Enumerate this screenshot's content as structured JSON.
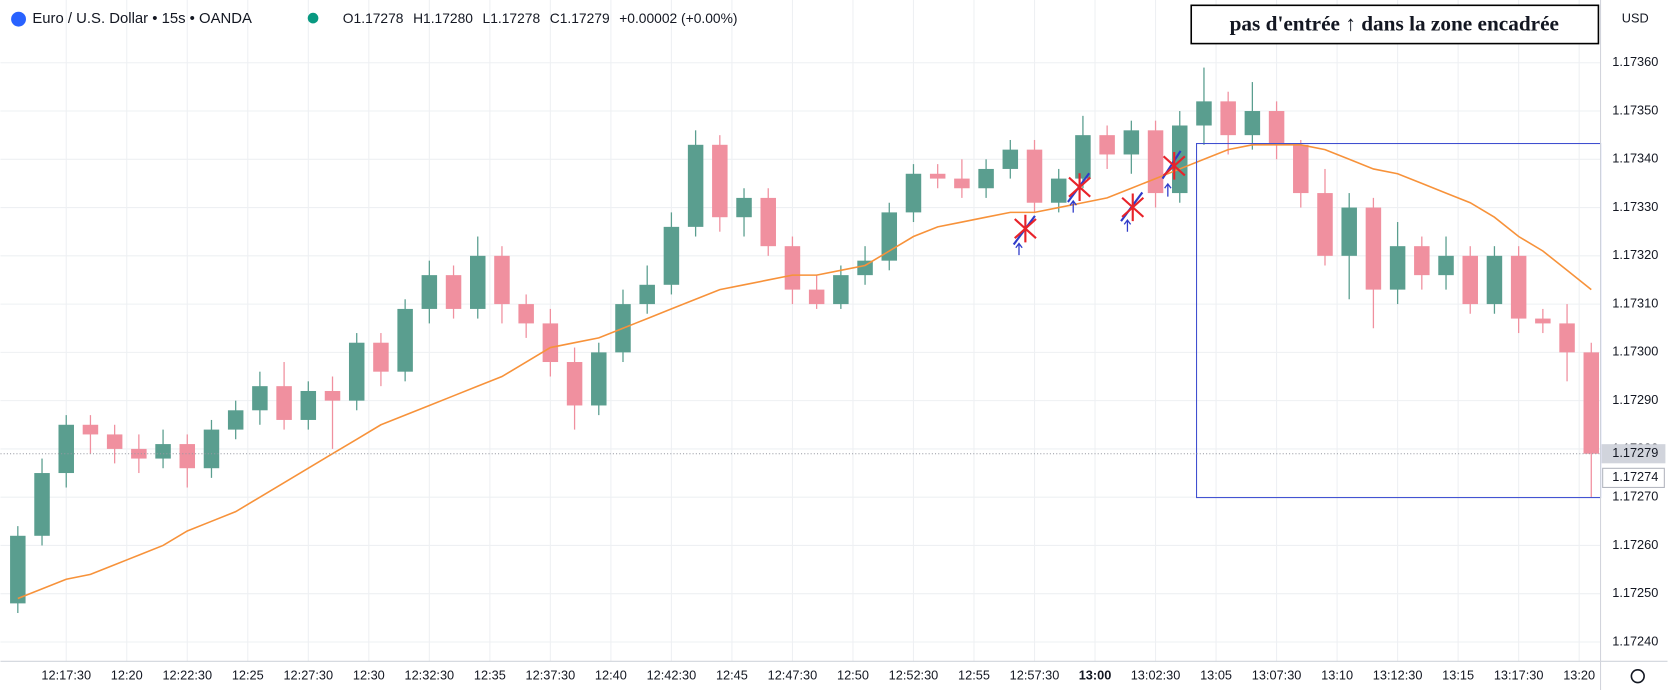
{
  "chart_data": {
    "type": "candlestick",
    "title": "Euro / U.S. Dollar • 15s • OANDA",
    "legend_text": [
      "O1.17278",
      "H1.17280",
      "L1.17278",
      "C1.17279",
      "+0.00002 (+0.00%)"
    ],
    "annotation": "pas d'entrée ↑ dans la zone encadrée",
    "currency": "USD",
    "last_price": {
      "value": 1.17279,
      "label": "1.17279"
    },
    "bid_price": {
      "value": 1.17274,
      "label": "1.17274"
    },
    "x": [
      "12:15",
      "12:16",
      "12:17",
      "12:18",
      "12:19",
      "12:20",
      "12:21",
      "12:22",
      "12:23",
      "12:24",
      "12:25",
      "12:26",
      "12:27",
      "12:28",
      "12:29",
      "12:30",
      "12:31",
      "12:32",
      "12:33",
      "12:34",
      "12:35",
      "12:36",
      "12:37",
      "12:38",
      "12:39",
      "12:40",
      "12:41",
      "12:42",
      "12:43",
      "12:44",
      "12:45",
      "12:46",
      "12:47",
      "12:48",
      "12:49",
      "12:50",
      "12:51",
      "12:52",
      "12:53",
      "12:54",
      "12:55",
      "12:56",
      "12:57",
      "12:58",
      "12:59",
      "13:00",
      "13:01",
      "13:02",
      "13:03",
      "13:04",
      "13:05",
      "13:06",
      "13:07",
      "13:08",
      "13:09",
      "13:10",
      "13:11",
      "13:12",
      "13:13",
      "13:14",
      "13:15",
      "13:16",
      "13:17",
      "13:18",
      "13:19",
      "13:20"
    ],
    "open": [
      1.17248,
      1.17262,
      1.17275,
      1.17285,
      1.17283,
      1.1728,
      1.17278,
      1.17281,
      1.17276,
      1.17284,
      1.17288,
      1.17293,
      1.17286,
      1.17292,
      1.1729,
      1.17302,
      1.17296,
      1.17309,
      1.17316,
      1.17309,
      1.1732,
      1.1731,
      1.17306,
      1.17298,
      1.17289,
      1.173,
      1.1731,
      1.17314,
      1.17326,
      1.17343,
      1.17328,
      1.17332,
      1.17322,
      1.17313,
      1.1731,
      1.17316,
      1.17319,
      1.17329,
      1.17337,
      1.17336,
      1.17334,
      1.17338,
      1.17342,
      1.17331,
      1.17336,
      1.17345,
      1.17341,
      1.17346,
      1.17333,
      1.17347,
      1.17352,
      1.17345,
      1.1735,
      1.17343,
      1.17333,
      1.1732,
      1.1733,
      1.17313,
      1.17322,
      1.17316,
      1.1732,
      1.1731,
      1.1732,
      1.17307,
      1.17306,
      1.173
    ],
    "high": [
      1.17264,
      1.17278,
      1.17287,
      1.17287,
      1.17285,
      1.17283,
      1.17284,
      1.17283,
      1.17286,
      1.1729,
      1.17296,
      1.17298,
      1.17294,
      1.17295,
      1.17304,
      1.17304,
      1.17311,
      1.17319,
      1.17318,
      1.17324,
      1.17322,
      1.17312,
      1.17309,
      1.17301,
      1.17302,
      1.17313,
      1.17318,
      1.17329,
      1.17346,
      1.17345,
      1.17334,
      1.17334,
      1.17324,
      1.17316,
      1.17318,
      1.17322,
      1.17331,
      1.17339,
      1.17339,
      1.1734,
      1.1734,
      1.17344,
      1.17344,
      1.17338,
      1.17349,
      1.17347,
      1.17348,
      1.17348,
      1.1735,
      1.17359,
      1.17354,
      1.17356,
      1.17352,
      1.17344,
      1.17338,
      1.17333,
      1.17332,
      1.17327,
      1.17324,
      1.17324,
      1.17322,
      1.17322,
      1.17322,
      1.17309,
      1.1731,
      1.17302
    ],
    "low": [
      1.17246,
      1.1726,
      1.17272,
      1.17279,
      1.17277,
      1.17275,
      1.17276,
      1.17272,
      1.17274,
      1.17282,
      1.17285,
      1.17284,
      1.17284,
      1.1728,
      1.17288,
      1.17293,
      1.17294,
      1.17306,
      1.17307,
      1.17307,
      1.17306,
      1.17303,
      1.17295,
      1.17284,
      1.17287,
      1.17298,
      1.17308,
      1.17312,
      1.17324,
      1.17325,
      1.17324,
      1.1732,
      1.1731,
      1.17309,
      1.17309,
      1.17314,
      1.17317,
      1.17327,
      1.17334,
      1.17332,
      1.17332,
      1.17336,
      1.17329,
      1.17329,
      1.17334,
      1.17338,
      1.17337,
      1.1733,
      1.17331,
      1.17343,
      1.17341,
      1.17342,
      1.1734,
      1.1733,
      1.17318,
      1.17311,
      1.17305,
      1.1731,
      1.17313,
      1.17313,
      1.17308,
      1.17308,
      1.17304,
      1.17304,
      1.17294,
      1.1727
    ],
    "close": [
      1.17262,
      1.17275,
      1.17285,
      1.17283,
      1.1728,
      1.17278,
      1.17281,
      1.17276,
      1.17284,
      1.17288,
      1.17293,
      1.17286,
      1.17292,
      1.1729,
      1.17302,
      1.17296,
      1.17309,
      1.17316,
      1.17309,
      1.1732,
      1.1731,
      1.17306,
      1.17298,
      1.17289,
      1.173,
      1.1731,
      1.17314,
      1.17326,
      1.17343,
      1.17328,
      1.17332,
      1.17322,
      1.17313,
      1.1731,
      1.17316,
      1.17319,
      1.17329,
      1.17337,
      1.17336,
      1.17334,
      1.17338,
      1.17342,
      1.17331,
      1.17336,
      1.17345,
      1.17341,
      1.17346,
      1.17333,
      1.17347,
      1.17352,
      1.17345,
      1.1735,
      1.17343,
      1.17333,
      1.1732,
      1.1733,
      1.17313,
      1.17322,
      1.17316,
      1.1732,
      1.1731,
      1.1732,
      1.17307,
      1.17306,
      1.173,
      1.17279
    ],
    "up_color": "#5a9e8f",
    "down_color": "#f0909f",
    "ma": {
      "color": "#f7923a",
      "values": [
        1.17249,
        1.17251,
        1.17253,
        1.17254,
        1.17256,
        1.17258,
        1.1726,
        1.17263,
        1.17265,
        1.17267,
        1.1727,
        1.17273,
        1.17276,
        1.17279,
        1.17282,
        1.17285,
        1.17287,
        1.17289,
        1.17291,
        1.17293,
        1.17295,
        1.17298,
        1.17301,
        1.17302,
        1.17303,
        1.17305,
        1.17307,
        1.17309,
        1.17311,
        1.17313,
        1.17314,
        1.17315,
        1.17316,
        1.17316,
        1.17317,
        1.17318,
        1.17321,
        1.17324,
        1.17326,
        1.17327,
        1.17328,
        1.17329,
        1.17329,
        1.1733,
        1.17331,
        1.17332,
        1.17334,
        1.17336,
        1.17338,
        1.1734,
        1.17342,
        1.17343,
        1.17343,
        1.17343,
        1.17342,
        1.1734,
        1.17338,
        1.17337,
        1.17335,
        1.17333,
        1.17331,
        1.17328,
        1.17324,
        1.17321,
        1.17317,
        1.17313
      ]
    },
    "xlim": [
      "12:14:47",
      "13:20:53"
    ],
    "xticks": [
      "12:17:30",
      "12:20",
      "12:22:30",
      "12:25",
      "12:27:30",
      "12:30",
      "12:32:30",
      "12:35",
      "12:37:30",
      "12:40",
      "12:42:30",
      "12:45",
      "12:47:30",
      "12:50",
      "12:52:30",
      "12:55",
      "12:57:30",
      "13:00",
      "13:02:30",
      "13:05",
      "13:07:30",
      "13:10",
      "13:12:30",
      "13:15",
      "13:17:30",
      "13:20"
    ],
    "ylim": [
      1.17236,
      1.17373
    ],
    "yticks": [
      {
        "value": 1.1724,
        "label": "1.17240"
      },
      {
        "value": 1.1725,
        "label": "1.17250"
      },
      {
        "value": 1.1726,
        "label": "1.17260"
      },
      {
        "value": 1.1727,
        "label": "1.17270"
      },
      {
        "value": 1.1728,
        "label": "1.17280"
      },
      {
        "value": 1.1729,
        "label": "1.17290"
      },
      {
        "value": 1.173,
        "label": "1.17300"
      },
      {
        "value": 1.1731,
        "label": "1.17310"
      },
      {
        "value": 1.1732,
        "label": "1.17320"
      },
      {
        "value": 1.1733,
        "label": "1.17330"
      },
      {
        "value": 1.1734,
        "label": "1.17340"
      },
      {
        "value": 1.1735,
        "label": "1.17350"
      },
      {
        "value": 1.1736,
        "label": "1.17360"
      }
    ],
    "grid": true
  }
}
